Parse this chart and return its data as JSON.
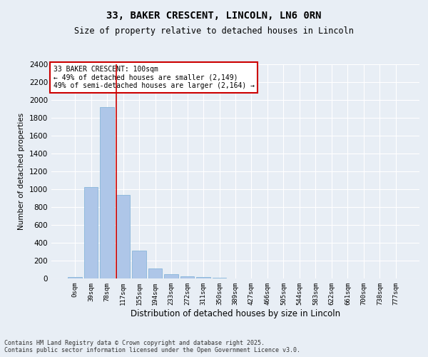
{
  "title_line1": "33, BAKER CRESCENT, LINCOLN, LN6 0RN",
  "title_line2": "Size of property relative to detached houses in Lincoln",
  "xlabel": "Distribution of detached houses by size in Lincoln",
  "ylabel": "Number of detached properties",
  "bar_labels": [
    "0sqm",
    "39sqm",
    "78sqm",
    "117sqm",
    "155sqm",
    "194sqm",
    "233sqm",
    "272sqm",
    "311sqm",
    "350sqm",
    "389sqm",
    "427sqm",
    "466sqm",
    "505sqm",
    "544sqm",
    "583sqm",
    "622sqm",
    "661sqm",
    "700sqm",
    "738sqm",
    "777sqm"
  ],
  "bar_values": [
    15,
    1025,
    1920,
    935,
    315,
    110,
    45,
    25,
    15,
    5,
    0,
    0,
    0,
    0,
    0,
    0,
    0,
    0,
    0,
    0,
    0
  ],
  "bar_color": "#aec6e8",
  "bar_edge_color": "#7aaed6",
  "vline_x": 2.56,
  "vline_color": "#cc0000",
  "annotation_text": "33 BAKER CRESCENT: 100sqm\n← 49% of detached houses are smaller (2,149)\n49% of semi-detached houses are larger (2,164) →",
  "annotation_box_color": "#ffffff",
  "annotation_box_edgecolor": "#cc0000",
  "ylim": [
    0,
    2400
  ],
  "yticks": [
    0,
    200,
    400,
    600,
    800,
    1000,
    1200,
    1400,
    1600,
    1800,
    2000,
    2200,
    2400
  ],
  "background_color": "#e8eef5",
  "grid_color": "#ffffff",
  "footer_line1": "Contains HM Land Registry data © Crown copyright and database right 2025.",
  "footer_line2": "Contains public sector information licensed under the Open Government Licence v3.0."
}
